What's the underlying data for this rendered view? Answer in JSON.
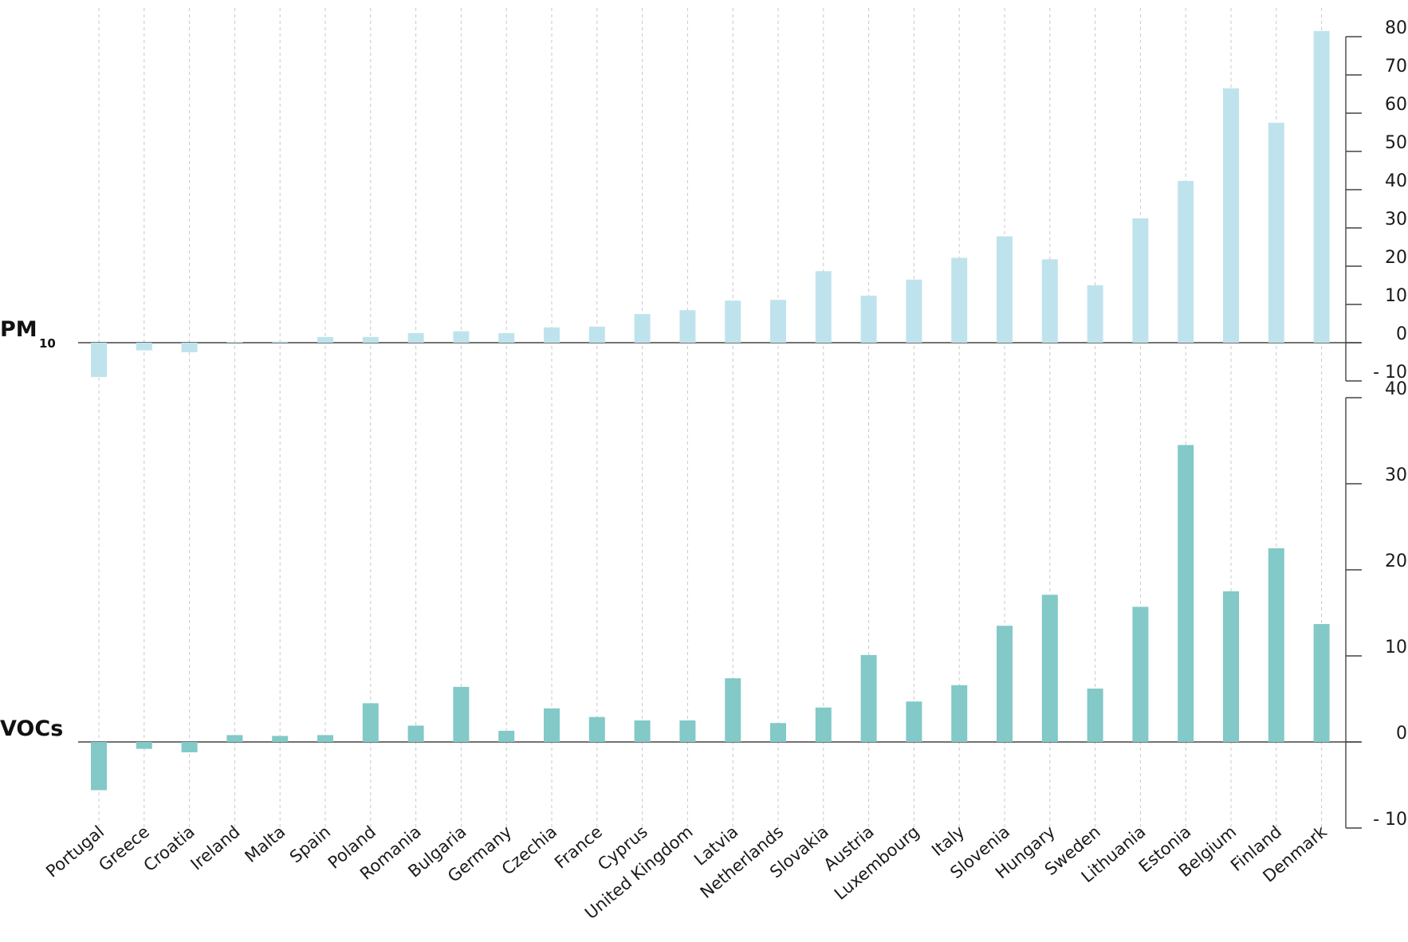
{
  "chart_data": [
    {
      "type": "bar",
      "label": "PM",
      "label_sub": "10",
      "color": "#bfe3ec",
      "ylim": [
        -10,
        80
      ],
      "ticks": [
        80,
        70,
        60,
        50,
        40,
        30,
        20,
        10,
        0,
        -10
      ],
      "categories": [
        "Portugal",
        "Greece",
        "Croatia",
        "Ireland",
        "Malta",
        "Spain",
        "Poland",
        "Romania",
        "Bulgaria",
        "Germany",
        "Czechia",
        "France",
        "Cyprus",
        "United Kingdom",
        "Latvia",
        "Netherlands",
        "Slovakia",
        "Austria",
        "Luxembourg",
        "Italy",
        "Slovenia",
        "Hungary",
        "Sweden",
        "Lithuania",
        "Estonia",
        "Belgium",
        "Finland",
        "Denmark"
      ],
      "values": [
        -9,
        -2,
        -2.5,
        0,
        0.3,
        1.5,
        1.5,
        2.5,
        3,
        2.5,
        4,
        4.2,
        7.5,
        8.5,
        11,
        11.2,
        18.7,
        12.3,
        16.5,
        22.2,
        27.8,
        21.8,
        15,
        32.5,
        42.3,
        66.5,
        57.5,
        81.5
      ]
    },
    {
      "type": "bar",
      "label": "VOCs",
      "color": "#82c9c7",
      "ylim": [
        -10,
        40
      ],
      "ticks": [
        40,
        30,
        20,
        10,
        0,
        -10
      ],
      "categories": [
        "Portugal",
        "Greece",
        "Croatia",
        "Ireland",
        "Malta",
        "Spain",
        "Poland",
        "Romania",
        "Bulgaria",
        "Germany",
        "Czechia",
        "France",
        "Cyprus",
        "United Kingdom",
        "Latvia",
        "Netherlands",
        "Slovakia",
        "Austria",
        "Luxembourg",
        "Italy",
        "Slovenia",
        "Hungary",
        "Sweden",
        "Lithuania",
        "Estonia",
        "Belgium",
        "Finland",
        "Denmark"
      ],
      "values": [
        -5.6,
        -0.8,
        -1.2,
        0.8,
        0.7,
        0.8,
        4.5,
        1.9,
        6.4,
        1.3,
        3.9,
        2.9,
        2.5,
        2.5,
        7.4,
        2.2,
        4.0,
        10.1,
        4.7,
        6.6,
        13.5,
        17.1,
        6.2,
        15.7,
        34.5,
        17.5,
        22.5,
        13.7
      ]
    }
  ]
}
